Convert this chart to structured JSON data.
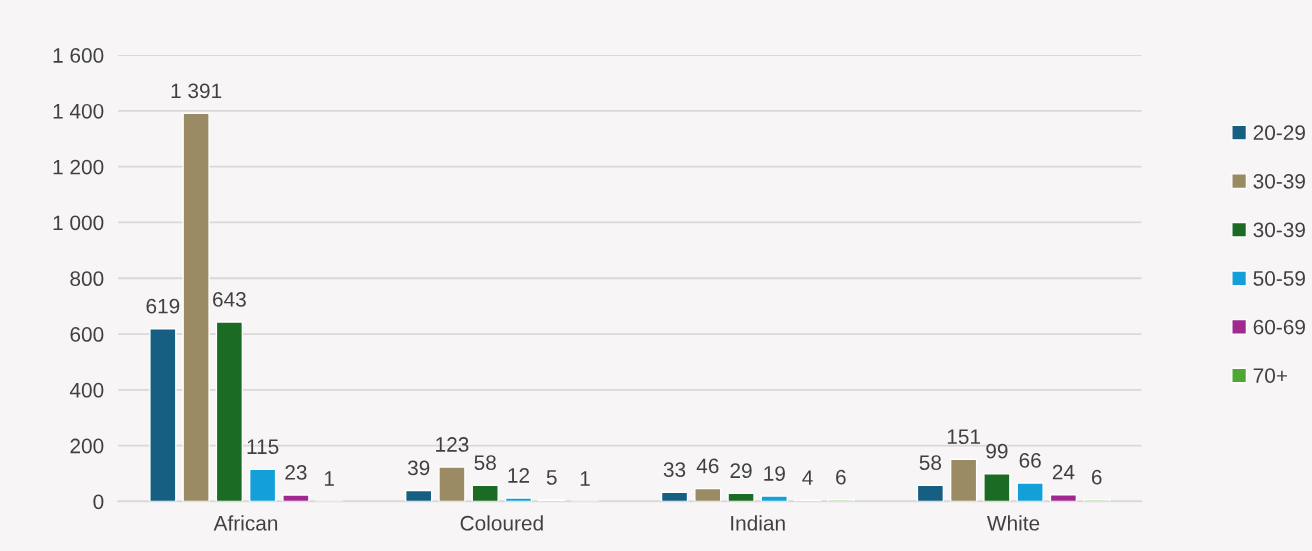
{
  "chart_data": {
    "type": "bar",
    "categories": [
      "African",
      "Coloured",
      "Indian",
      "White"
    ],
    "series": [
      {
        "name": "20-29",
        "color": "#175f82",
        "values": [
          619,
          39,
          33,
          58
        ],
        "value_labels": [
          "619",
          "39",
          "33",
          "58"
        ]
      },
      {
        "name": "30-39",
        "color": "#9a8b64",
        "values": [
          1391,
          123,
          46,
          151
        ],
        "value_labels": [
          "1 391",
          "123",
          "46",
          "151"
        ]
      },
      {
        "name": "30-39",
        "color": "#1b6b24",
        "values": [
          643,
          58,
          29,
          99
        ],
        "value_labels": [
          "643",
          "58",
          "29",
          "99"
        ]
      },
      {
        "name": "50-59",
        "color": "#13a0d8",
        "values": [
          115,
          12,
          19,
          66
        ],
        "value_labels": [
          "115",
          "12",
          "19",
          "66"
        ]
      },
      {
        "name": "60-69",
        "color": "#a0298f",
        "values": [
          23,
          5,
          4,
          24
        ],
        "value_labels": [
          "23",
          "5",
          "4",
          "24"
        ]
      },
      {
        "name": "70+",
        "color": "#4da832",
        "values": [
          1,
          1,
          6,
          6
        ],
        "value_labels": [
          "1",
          "1",
          "6",
          "6"
        ]
      }
    ],
    "ylim": [
      0,
      1600
    ],
    "yticks": [
      0,
      200,
      400,
      600,
      800,
      {
        "value": 1000,
        "label": "1 000"
      },
      {
        "value": 1200,
        "label": "1 200"
      },
      {
        "value": 1400,
        "label": "1 400"
      },
      {
        "value": 1600,
        "label": "1 600"
      }
    ],
    "grid": "y",
    "legend": "right"
  }
}
